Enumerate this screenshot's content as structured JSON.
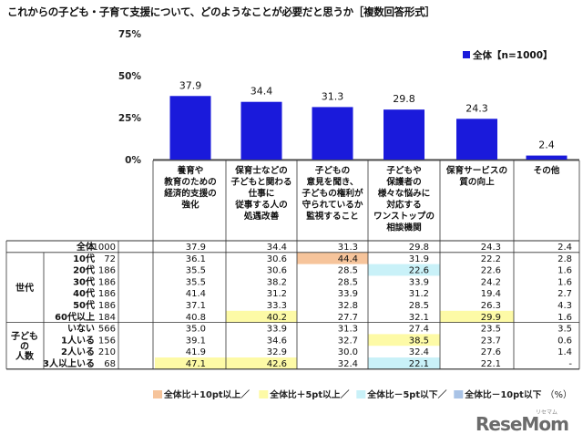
{
  "title": "これからの子ども・子育て支援について、どのようなことが必要だと思うか［複数回答形式］",
  "legend_label": "全体【n=1000】",
  "unit": "（%）",
  "watermark": "ReseMom",
  "watermark_sub": "リセマム",
  "colors": {
    "bar": "#1a1adb",
    "plus10": "#f6c49b",
    "plus5": "#fdfaa6",
    "minus5": "#c9f1f8",
    "minus10": "#a9c3e6"
  },
  "highlight_legend": [
    {
      "key": "plus10",
      "label": "全体比＋10pt以上／"
    },
    {
      "key": "plus5",
      "label": "全体比＋5pt以上／"
    },
    {
      "key": "minus5",
      "label": "全体比－5pt以下／"
    },
    {
      "key": "minus10",
      "label": "全体比－10pt以下"
    }
  ],
  "chart_data": {
    "type": "bar",
    "title": "これからの子ども・子育て支援について、どのようなことが必要だと思うか［複数回答形式］",
    "categories": [
      "養育や教育のための経済的支援の強化",
      "保育士などの子どもと関わる仕事に従事する人の処遇改善",
      "子どもの意見を聞き、子どもの権利が守られているか監視すること",
      "子どもや保護者の様々な悩みに対応するワンストップの相談機関",
      "保育サービスの質の向上",
      "その他"
    ],
    "category_lines": [
      [
        "養育や",
        "教育のための",
        "経済的支援の",
        "強化"
      ],
      [
        "保育士などの",
        "子どもと関わる",
        "仕事に",
        "従事する人の",
        "処遇改善"
      ],
      [
        "子どもの",
        "意見を聞き、",
        "子どもの権利が",
        "守られているか",
        "監視すること"
      ],
      [
        "子どもや",
        "保護者の",
        "様々な悩みに",
        "対応する",
        "ワンストップの",
        "相談機関"
      ],
      [
        "保育サービスの",
        "質の向上"
      ],
      [
        "その他"
      ]
    ],
    "series": [
      {
        "name": "全体【n=1000】",
        "values": [
          37.9,
          34.4,
          31.3,
          29.8,
          24.3,
          2.4
        ]
      }
    ],
    "yticks": [
      "0%",
      "25%",
      "50%",
      "75%"
    ],
    "ylim": [
      0,
      75
    ],
    "legend": "top-right",
    "grid": false
  },
  "table": {
    "groups": [
      {
        "label": "",
        "rows": [
          0
        ]
      },
      {
        "label": "世代",
        "rows": [
          1,
          2,
          3,
          4,
          5,
          6
        ]
      },
      {
        "label": "子どもの人数",
        "label_lines": [
          "子ども",
          "の",
          "人数"
        ],
        "rows": [
          7,
          8,
          9,
          10
        ]
      }
    ],
    "rows": [
      {
        "label": "全体",
        "n": "1000",
        "values": [
          "37.9",
          "34.4",
          "31.3",
          "29.8",
          "24.3",
          "2.4"
        ],
        "hl": [
          "",
          "",
          "",
          "",
          "",
          ""
        ]
      },
      {
        "label": "10代",
        "n": "72",
        "values": [
          "36.1",
          "30.6",
          "44.4",
          "31.9",
          "22.2",
          "2.8"
        ],
        "hl": [
          "",
          "",
          "plus10",
          "",
          "",
          ""
        ]
      },
      {
        "label": "20代",
        "n": "186",
        "values": [
          "35.5",
          "30.6",
          "28.5",
          "22.6",
          "22.6",
          "1.6"
        ],
        "hl": [
          "",
          "",
          "",
          "minus5",
          "",
          ""
        ]
      },
      {
        "label": "30代",
        "n": "186",
        "values": [
          "35.5",
          "38.2",
          "28.5",
          "33.9",
          "24.2",
          "1.6"
        ],
        "hl": [
          "",
          "",
          "",
          "",
          "",
          ""
        ]
      },
      {
        "label": "40代",
        "n": "186",
        "values": [
          "41.4",
          "31.2",
          "33.9",
          "31.2",
          "19.4",
          "2.7"
        ],
        "hl": [
          "",
          "",
          "",
          "",
          "",
          ""
        ]
      },
      {
        "label": "50代",
        "n": "186",
        "values": [
          "37.1",
          "33.3",
          "32.8",
          "28.5",
          "26.3",
          "4.3"
        ],
        "hl": [
          "",
          "",
          "",
          "",
          "",
          ""
        ]
      },
      {
        "label": "60代以上",
        "n": "184",
        "values": [
          "40.8",
          "40.2",
          "27.7",
          "32.1",
          "29.9",
          "1.6"
        ],
        "hl": [
          "",
          "plus5",
          "",
          "",
          "plus5",
          ""
        ]
      },
      {
        "label": "いない",
        "n": "566",
        "values": [
          "35.0",
          "33.9",
          "31.3",
          "27.4",
          "23.5",
          "3.5"
        ],
        "hl": [
          "",
          "",
          "",
          "",
          "",
          ""
        ]
      },
      {
        "label": "1人いる",
        "n": "156",
        "values": [
          "39.1",
          "34.6",
          "32.7",
          "38.5",
          "23.7",
          "0.6"
        ],
        "hl": [
          "",
          "",
          "",
          "plus5",
          "",
          ""
        ]
      },
      {
        "label": "2人いる",
        "n": "210",
        "values": [
          "41.9",
          "32.9",
          "30.0",
          "32.4",
          "27.6",
          "1.4"
        ],
        "hl": [
          "",
          "",
          "",
          "",
          "",
          ""
        ]
      },
      {
        "label": "3人以上いる",
        "n": "68",
        "values": [
          "47.1",
          "42.6",
          "32.4",
          "22.1",
          "22.1",
          "-"
        ],
        "hl": [
          "plus5",
          "plus5",
          "",
          "minus5",
          "",
          ""
        ]
      }
    ]
  }
}
